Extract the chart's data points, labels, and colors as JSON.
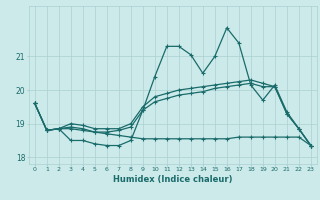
{
  "xlabel": "Humidex (Indice chaleur)",
  "bg_color": "#cdeaea",
  "grid_color": "#aacfcf",
  "line_color": "#1a6b6b",
  "xlim": [
    -0.5,
    23.5
  ],
  "ylim": [
    17.8,
    22.5
  ],
  "xticks": [
    0,
    1,
    2,
    3,
    4,
    5,
    6,
    7,
    8,
    9,
    10,
    11,
    12,
    13,
    14,
    15,
    16,
    17,
    18,
    19,
    20,
    21,
    22,
    23
  ],
  "yticks": [
    18,
    19,
    20,
    21
  ],
  "ytick_labels": [
    "18",
    "19",
    "20",
    "21"
  ],
  "line1": [
    19.6,
    18.8,
    18.85,
    18.5,
    18.5,
    18.4,
    18.35,
    18.35,
    18.5,
    19.4,
    20.4,
    21.3,
    21.3,
    21.05,
    20.5,
    21.0,
    21.85,
    21.4,
    20.15,
    19.7,
    20.15,
    19.35,
    18.85,
    18.35
  ],
  "line2": [
    19.6,
    18.8,
    18.85,
    18.9,
    18.85,
    18.75,
    18.75,
    18.8,
    18.9,
    19.4,
    19.65,
    19.75,
    19.85,
    19.9,
    19.95,
    20.05,
    20.1,
    20.15,
    20.2,
    20.1,
    20.1,
    19.3,
    18.85,
    18.35
  ],
  "line3": [
    19.6,
    18.8,
    18.85,
    18.85,
    18.8,
    18.75,
    18.7,
    18.65,
    18.6,
    18.55,
    18.55,
    18.55,
    18.55,
    18.55,
    18.55,
    18.55,
    18.55,
    18.6,
    18.6,
    18.6,
    18.6,
    18.6,
    18.6,
    18.35
  ],
  "line4": [
    19.6,
    18.8,
    18.85,
    19.0,
    18.95,
    18.85,
    18.85,
    18.85,
    19.0,
    19.5,
    19.8,
    19.9,
    20.0,
    20.05,
    20.1,
    20.15,
    20.2,
    20.25,
    20.3,
    20.2,
    20.1,
    19.3,
    18.85,
    18.35
  ]
}
